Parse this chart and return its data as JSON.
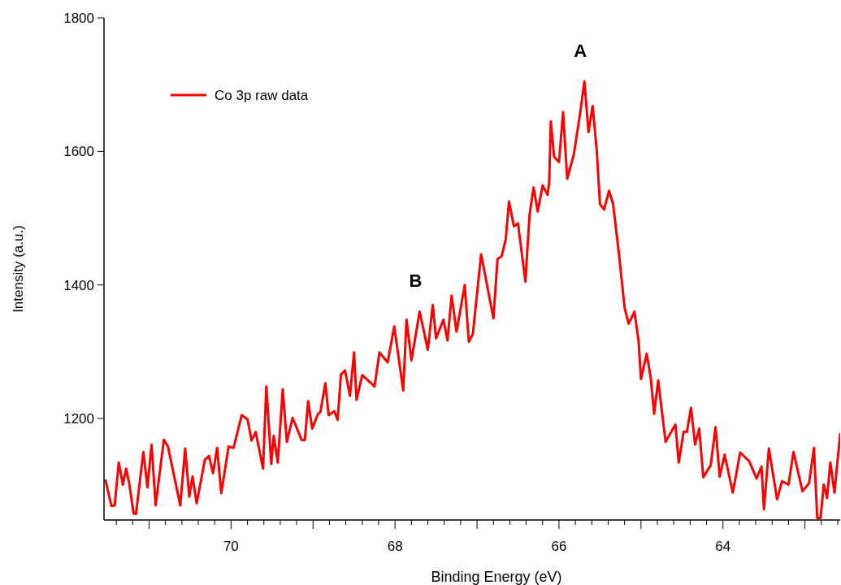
{
  "chart_data": {
    "type": "line",
    "xlabel": "Binding Energy (eV)",
    "ylabel": "Intensity (a.u.)",
    "xlim": [
      71.55,
      62.57
    ],
    "ylim": [
      1048,
      1800
    ],
    "yticks": [
      1200,
      1400,
      1600,
      1800
    ],
    "xticks": [
      {
        "value": 71.4,
        "label": null
      },
      {
        "value": 71.2,
        "label": null
      },
      {
        "value": 71,
        "label": null
      },
      {
        "value": 70.8,
        "label": null
      },
      {
        "value": 70.6,
        "label": null
      },
      {
        "value": 70.4,
        "label": null
      },
      {
        "value": 70.2,
        "label": null
      },
      70,
      {
        "value": 69.8,
        "label": null
      },
      {
        "value": 69.6,
        "label": null
      },
      {
        "value": 69.4,
        "label": null
      },
      {
        "value": 69.2,
        "label": null
      },
      {
        "value": 69,
        "label": null
      },
      {
        "value": 68.8,
        "label": null
      },
      {
        "value": 68.6,
        "label": null
      },
      {
        "value": 68.4,
        "label": null
      },
      {
        "value": 68.2,
        "label": null
      },
      68,
      {
        "value": 67.8,
        "label": null
      },
      {
        "value": 67.6,
        "label": null
      },
      {
        "value": 67.4,
        "label": null
      },
      {
        "value": 67.2,
        "label": null
      },
      {
        "value": 67,
        "label": null
      },
      {
        "value": 66.8,
        "label": null
      },
      {
        "value": 66.6,
        "label": null
      },
      {
        "value": 66.4,
        "label": null
      },
      {
        "value": 66.2,
        "label": null
      },
      66,
      {
        "value": 65.8,
        "label": null
      },
      {
        "value": 65.6,
        "label": null
      },
      {
        "value": 65.4,
        "label": null
      },
      {
        "value": 65.2,
        "label": null
      },
      {
        "value": 65,
        "label": null
      },
      {
        "value": 64.8,
        "label": null
      },
      {
        "value": 64.6,
        "label": null
      },
      {
        "value": 64.4,
        "label": null
      },
      {
        "value": 64.2,
        "label": null
      },
      64,
      {
        "value": 63.8,
        "label": null
      },
      {
        "value": 63.6,
        "label": null
      },
      {
        "value": 63.4,
        "label": null
      },
      {
        "value": 63.2,
        "label": null
      },
      {
        "value": 63,
        "label": null
      },
      {
        "value": 62.8,
        "label": null
      },
      {
        "value": 62.6,
        "label": null
      }
    ],
    "grid": false,
    "legend": "top left",
    "marker": "none",
    "line_style": "solid",
    "annotations": [
      {
        "text": "A",
        "x": 65.69,
        "y": 1705
      },
      {
        "text": "B",
        "x": 67.7,
        "y": 1360
      }
    ],
    "series": [
      {
        "name": "Co 3p raw data",
        "color": "#ff0000",
        "x": [
          71.53,
          71.46,
          71.42,
          71.37,
          71.32,
          71.28,
          71.24,
          71.19,
          71.16,
          71.07,
          71.02,
          70.97,
          70.92,
          70.82,
          70.77,
          70.62,
          70.56,
          70.51,
          70.47,
          70.42,
          70.32,
          70.27,
          70.22,
          70.17,
          70.12,
          70.03,
          69.97,
          69.87,
          69.8,
          69.75,
          69.7,
          69.61,
          69.57,
          69.51,
          69.48,
          69.43,
          69.37,
          69.32,
          69.25,
          69.14,
          69.1,
          69.06,
          69.01,
          68.94,
          68.91,
          68.85,
          68.81,
          68.74,
          68.7,
          68.66,
          68.61,
          68.55,
          68.5,
          68.47,
          68.4,
          68.25,
          68.19,
          68.09,
          68.01,
          67.9,
          67.86,
          67.8,
          67.7,
          67.6,
          67.54,
          67.5,
          67.41,
          67.36,
          67.31,
          67.25,
          67.15,
          67.1,
          67.05,
          66.95,
          66.8,
          66.75,
          66.7,
          66.65,
          66.61,
          66.55,
          66.5,
          66.41,
          66.36,
          66.31,
          66.26,
          66.2,
          66.14,
          66.12,
          66.1,
          66.06,
          66,
          65.95,
          65.9,
          65.82,
          65.74,
          65.69,
          65.64,
          65.59,
          65.54,
          65.5,
          65.45,
          65.39,
          65.34,
          65.27,
          65.2,
          65.15,
          65.08,
          65.03,
          65,
          64.93,
          64.88,
          64.84,
          64.79,
          64.7,
          64.58,
          64.54,
          64.48,
          64.44,
          64.39,
          64.34,
          64.29,
          64.24,
          64.15,
          64.09,
          64.04,
          63.98,
          63.88,
          63.79,
          63.68,
          63.59,
          63.53,
          63.5,
          63.44,
          63.34,
          63.28,
          63.2,
          63.14,
          63.03,
          62.95,
          62.89,
          62.85,
          62.81,
          62.77,
          62.73,
          62.69,
          62.64,
          62.57
        ],
        "values": [
          1107,
          1069,
          1070,
          1134,
          1101,
          1125,
          1101,
          1058,
          1057,
          1150,
          1097,
          1161,
          1070,
          1168,
          1158,
          1070,
          1155,
          1083,
          1113,
          1073,
          1138,
          1144,
          1118,
          1156,
          1088,
          1158,
          1156,
          1205,
          1199,
          1167,
          1180,
          1125,
          1248,
          1132,
          1174,
          1134,
          1244,
          1165,
          1201,
          1168,
          1168,
          1226,
          1185,
          1207,
          1210,
          1253,
          1205,
          1211,
          1198,
          1266,
          1272,
          1234,
          1299,
          1228,
          1265,
          1248,
          1299,
          1284,
          1338,
          1242,
          1348,
          1287,
          1360,
          1303,
          1370,
          1320,
          1348,
          1317,
          1384,
          1330,
          1400,
          1315,
          1327,
          1446,
          1350,
          1439,
          1443,
          1468,
          1525,
          1488,
          1492,
          1405,
          1504,
          1546,
          1510,
          1549,
          1535,
          1553,
          1645,
          1592,
          1584,
          1659,
          1559,
          1595,
          1659,
          1705,
          1629,
          1668,
          1602,
          1521,
          1513,
          1541,
          1521,
          1448,
          1366,
          1342,
          1360,
          1317,
          1259,
          1297,
          1260,
          1207,
          1257,
          1165,
          1191,
          1134,
          1180,
          1180,
          1216,
          1161,
          1185,
          1112,
          1130,
          1187,
          1113,
          1146,
          1089,
          1149,
          1136,
          1110,
          1128,
          1064,
          1155,
          1079,
          1106,
          1101,
          1150,
          1091,
          1103,
          1156,
          1051,
          1051,
          1101,
          1081,
          1134,
          1089,
          1177
        ]
      }
    ]
  }
}
